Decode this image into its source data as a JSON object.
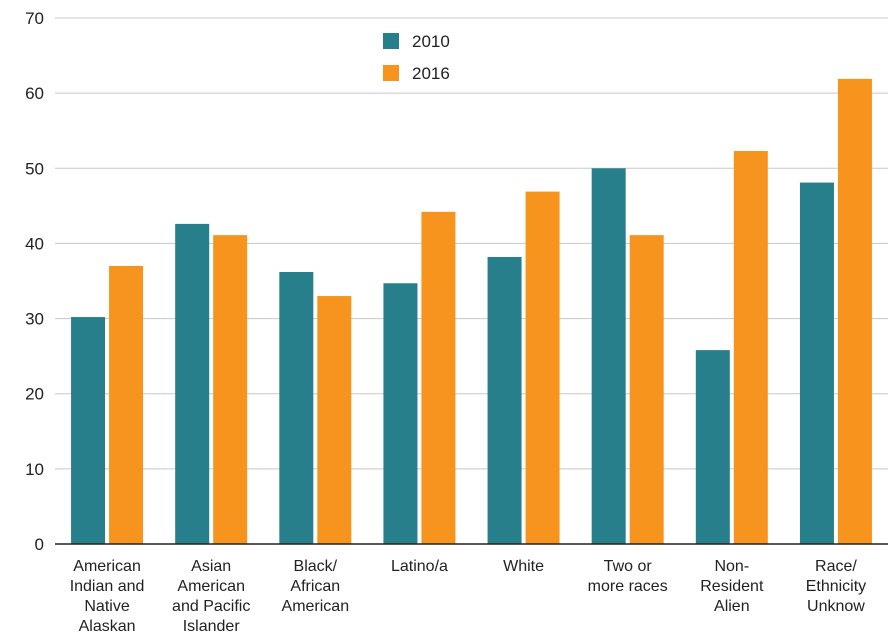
{
  "chart_data": {
    "type": "bar",
    "categories": [
      [
        "American",
        "Indian and",
        "Native",
        "Alaskan"
      ],
      [
        "Asian",
        "American",
        "and Pacific",
        "Islander"
      ],
      [
        "Black/",
        "African",
        "American"
      ],
      [
        "Latino/a"
      ],
      [
        "White"
      ],
      [
        "Two or",
        "more races"
      ],
      [
        "Non-",
        "Resident",
        "Alien"
      ],
      [
        "Race/",
        "Ethnicity",
        "Unknow"
      ]
    ],
    "series": [
      {
        "name": "2010",
        "color": "#267f8a",
        "values": [
          30.2,
          42.6,
          36.2,
          34.7,
          38.2,
          50.0,
          25.8,
          48.1
        ]
      },
      {
        "name": "2016",
        "color": "#f7941d",
        "values": [
          37.0,
          41.1,
          33.0,
          44.2,
          46.9,
          41.1,
          52.3,
          61.9
        ]
      }
    ],
    "y_ticks": [
      "0",
      "10",
      "20",
      "30",
      "40",
      "50",
      "60",
      "70"
    ],
    "ylim": [
      0,
      70
    ],
    "grid": true,
    "legend_position": "top-center"
  }
}
